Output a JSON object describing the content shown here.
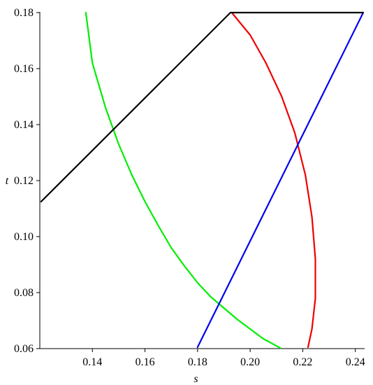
{
  "chart_data": {
    "type": "line",
    "title": "",
    "xlabel": "s",
    "ylabel": "t",
    "xlim": [
      0.12,
      0.243
    ],
    "ylim": [
      0.06,
      0.18
    ],
    "x_ticks": [
      "0.14",
      "0.16",
      "0.18",
      "0.20",
      "0.22",
      "0.24"
    ],
    "y_ticks": [
      "0.06",
      "0.08",
      "0.10",
      "0.12",
      "0.14",
      "0.16",
      "0.18"
    ],
    "grid": false,
    "legend": "none",
    "series": [
      {
        "color": "#00ee00",
        "points": [
          [
            0.1375,
            0.18
          ],
          [
            0.14,
            0.162
          ],
          [
            0.145,
            0.146
          ],
          [
            0.15,
            0.133
          ],
          [
            0.155,
            0.122
          ],
          [
            0.16,
            0.1125
          ],
          [
            0.165,
            0.104
          ],
          [
            0.17,
            0.096
          ],
          [
            0.175,
            0.0895
          ],
          [
            0.18,
            0.0835
          ],
          [
            0.185,
            0.0785
          ],
          [
            0.19,
            0.0745
          ],
          [
            0.195,
            0.0705
          ],
          [
            0.2,
            0.067
          ],
          [
            0.205,
            0.0635
          ],
          [
            0.2115,
            0.0602
          ]
        ]
      },
      {
        "color": "#ee0000",
        "points": [
          [
            0.193,
            0.18
          ],
          [
            0.2,
            0.172
          ],
          [
            0.206,
            0.162
          ],
          [
            0.212,
            0.15
          ],
          [
            0.217,
            0.137
          ],
          [
            0.221,
            0.122
          ],
          [
            0.2235,
            0.107
          ],
          [
            0.2248,
            0.092
          ],
          [
            0.2248,
            0.078
          ],
          [
            0.2235,
            0.067
          ],
          [
            0.222,
            0.0605
          ]
        ]
      },
      {
        "color": "#0000ee",
        "points": [
          [
            0.18,
            0.0605
          ],
          [
            0.243,
            0.18
          ]
        ]
      },
      {
        "color": "#000000",
        "points": [
          [
            0.1205,
            0.1125
          ],
          [
            0.1925,
            0.18
          ],
          [
            0.243,
            0.18
          ]
        ]
      }
    ]
  }
}
